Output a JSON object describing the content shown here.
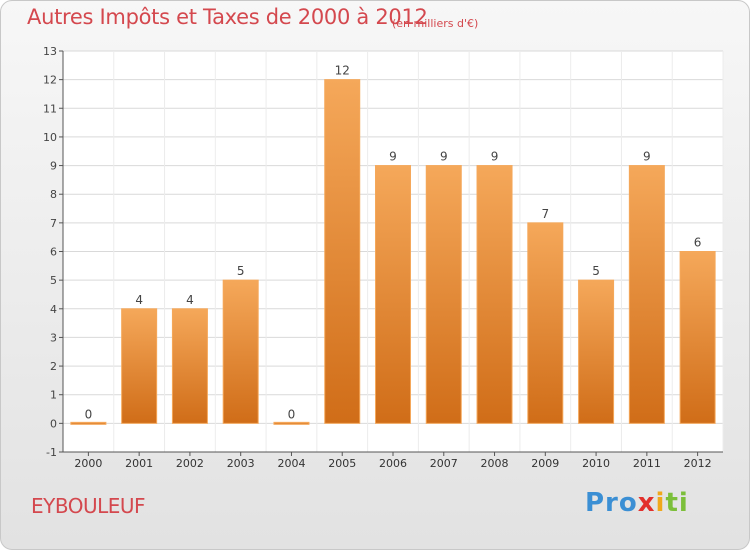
{
  "header": {
    "title": "Autres Impôts et Taxes de 2000 à 2012",
    "subtitle": "(en milliers d'€)"
  },
  "footer": {
    "place": "EYBOULEUF",
    "brand_parts": [
      "Pro",
      "x",
      "i",
      "ti"
    ]
  },
  "colors": {
    "title": "#d4484e",
    "bar_light": "#f5a85a",
    "bar_dark": "#d06d18",
    "grid": "#d9d9d9",
    "axis": "#555555"
  },
  "chart_data": {
    "type": "bar",
    "title": "Autres Impôts et Taxes de 2000 à 2012",
    "subtitle": "(en milliers d'€)",
    "categories": [
      "2000",
      "2001",
      "2002",
      "2003",
      "2004",
      "2005",
      "2006",
      "2007",
      "2008",
      "2009",
      "2010",
      "2011",
      "2012"
    ],
    "values": [
      0,
      4,
      4,
      5,
      0,
      12,
      9,
      9,
      9,
      7,
      5,
      9,
      6
    ],
    "data_labels": [
      "0",
      "4",
      "4",
      "5",
      "0",
      "12",
      "9",
      "9",
      "9",
      "7",
      "5",
      "9",
      "6"
    ],
    "ylim": [
      -1,
      13
    ],
    "yticks": [
      -1,
      0,
      1,
      2,
      3,
      4,
      5,
      6,
      7,
      8,
      9,
      10,
      11,
      12,
      13
    ],
    "xlabel": "",
    "ylabel": "",
    "grid": true,
    "legend": "none"
  }
}
